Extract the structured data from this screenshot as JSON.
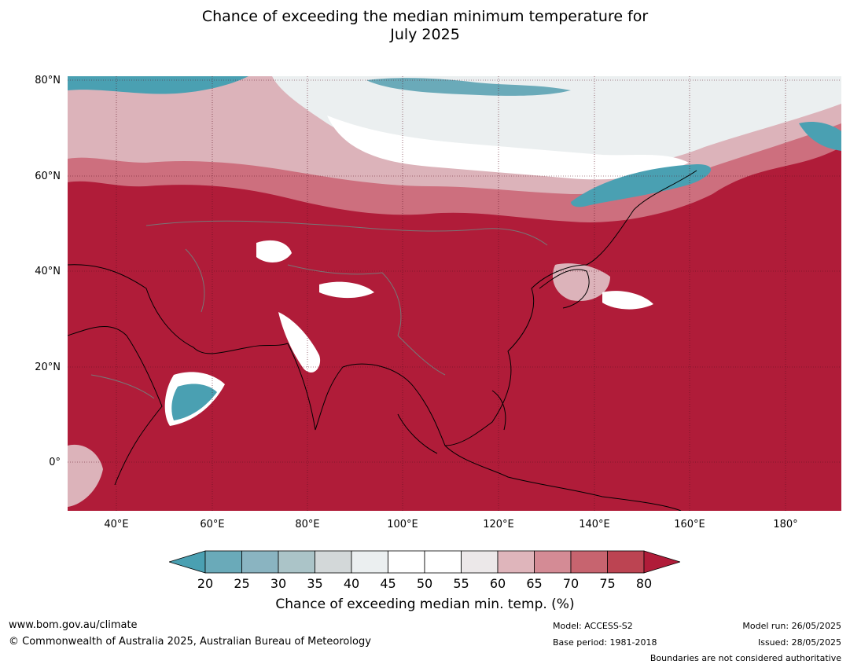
{
  "title_line1": "Chance of exceeding the median minimum temperature for",
  "title_line2": "July 2025",
  "map": {
    "lat_labels": [
      "80°N",
      "60°N",
      "40°N",
      "20°N",
      "0°"
    ],
    "lon_labels": [
      "40°E",
      "60°E",
      "80°E",
      "100°E",
      "120°E",
      "140°E",
      "160°E",
      "180°"
    ],
    "colors": {
      "dominant": "#b01c39",
      "teal": "#4aa0b2",
      "white": "#ffffff",
      "light_grey": "#e9ecee",
      "pink": "#dcb3ba",
      "rose": "#cd6f7e"
    }
  },
  "colorbar": {
    "ticks": [
      "20",
      "25",
      "30",
      "35",
      "40",
      "45",
      "50",
      "55",
      "60",
      "65",
      "70",
      "75",
      "80"
    ],
    "colors": [
      "#4aa0b2",
      "#6aaab9",
      "#8ab4c1",
      "#abc4c8",
      "#d3d8d9",
      "#ebeff0",
      "#ffffff",
      "#ffffff",
      "#ece8e9",
      "#dfb5bb",
      "#d48b95",
      "#c7646f",
      "#bc4452",
      "#b01c39"
    ],
    "label": "Chance of exceeding median min. temp. (%)"
  },
  "footer": {
    "website": "www.bom.gov.au/climate",
    "copyright": "© Commonwealth of Australia 2025, Australian Bureau of Meteorology",
    "model": "Model: ACCESS-S2",
    "base_period": "Base period: 1981-2018",
    "model_run": "Model run: 26/05/2025",
    "issued": "Issued: 28/05/2025",
    "disclaimer": "Boundaries are not considered authoritative"
  }
}
